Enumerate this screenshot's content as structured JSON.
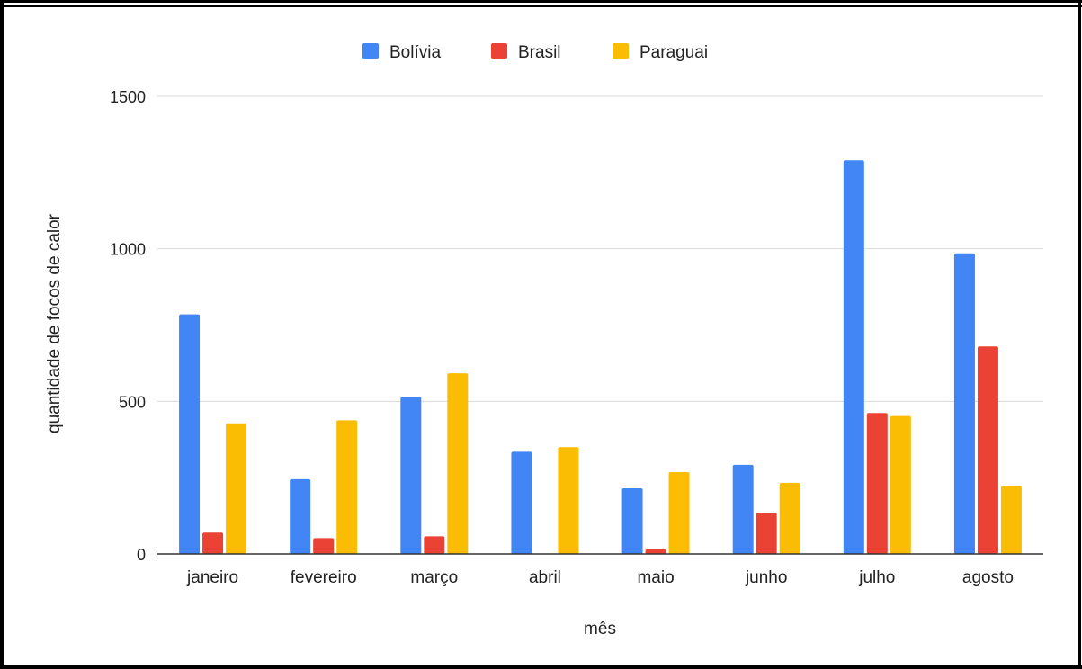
{
  "chart_data": {
    "type": "bar",
    "title": "",
    "xlabel": "mês",
    "ylabel": "quantidade de focos de calor",
    "categories": [
      "janeiro",
      "fevereiro",
      "março",
      "abril",
      "maio",
      "junho",
      "julho",
      "agosto"
    ],
    "series": [
      {
        "name": "Bolívia",
        "color": "#4285f4",
        "values": [
          785,
          245,
          515,
          335,
          215,
          292,
          1290,
          985
        ]
      },
      {
        "name": "Brasil",
        "color": "#ea4335",
        "values": [
          70,
          52,
          58,
          0,
          15,
          135,
          462,
          680
        ]
      },
      {
        "name": "Paraguai",
        "color": "#fbbc04",
        "values": [
          428,
          438,
          592,
          350,
          268,
          233,
          452,
          222
        ]
      }
    ],
    "ylim": [
      0,
      1500
    ],
    "yticks": [
      0,
      500,
      1000,
      1500
    ],
    "grid": true,
    "legend": "top-center"
  }
}
